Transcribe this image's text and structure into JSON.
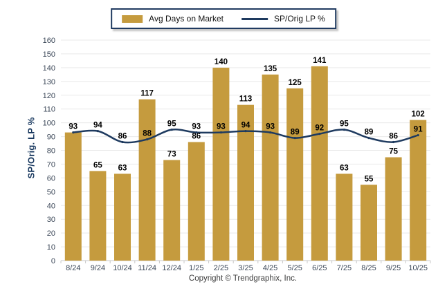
{
  "legend": {
    "bar_label": "Avg Days on Market",
    "line_label": "SP/Orig LP %"
  },
  "y_axis": {
    "title": "SP/Orig. LP %",
    "ticks": [
      0,
      10,
      20,
      30,
      40,
      50,
      60,
      70,
      80,
      90,
      100,
      110,
      120,
      130,
      140,
      150,
      160
    ]
  },
  "footer": {
    "copyright": "Copyright © Trendgraphix, Inc."
  },
  "colors": {
    "bar": "#C59B3E",
    "line": "#1E3A5F",
    "grid": "#E9E9E9",
    "axis": "#C8C8C8",
    "tick_text": "#3A4657",
    "value_text": "#000000",
    "legend_border": "#1F3A60"
  },
  "chart_data": {
    "type": "bar",
    "subtype": "bar+line combo",
    "categories": [
      "8/24",
      "9/24",
      "10/24",
      "11/24",
      "12/24",
      "1/25",
      "2/25",
      "3/25",
      "4/25",
      "5/25",
      "6/25",
      "7/25",
      "8/25",
      "9/25",
      "10/25"
    ],
    "series": [
      {
        "name": "Avg Days on Market",
        "type": "bar",
        "color": "#C59B3E",
        "values": [
          93,
          65,
          63,
          117,
          73,
          86,
          140,
          113,
          135,
          125,
          141,
          63,
          55,
          75,
          102
        ]
      },
      {
        "name": "SP/Orig LP %",
        "type": "line",
        "color": "#1E3A5F",
        "values": [
          93,
          94,
          86,
          88,
          95,
          93,
          93,
          94,
          93,
          89,
          92,
          95,
          89,
          86,
          91
        ]
      }
    ],
    "title": "",
    "xlabel": "",
    "ylabel": "SP/Orig. LP %",
    "ylim": [
      0,
      160
    ],
    "ytick_step": 10,
    "grid": true,
    "grid_direction": "horizontal",
    "legend_position": "top-center",
    "data_labels": "bold, black, above bars and above line points"
  }
}
